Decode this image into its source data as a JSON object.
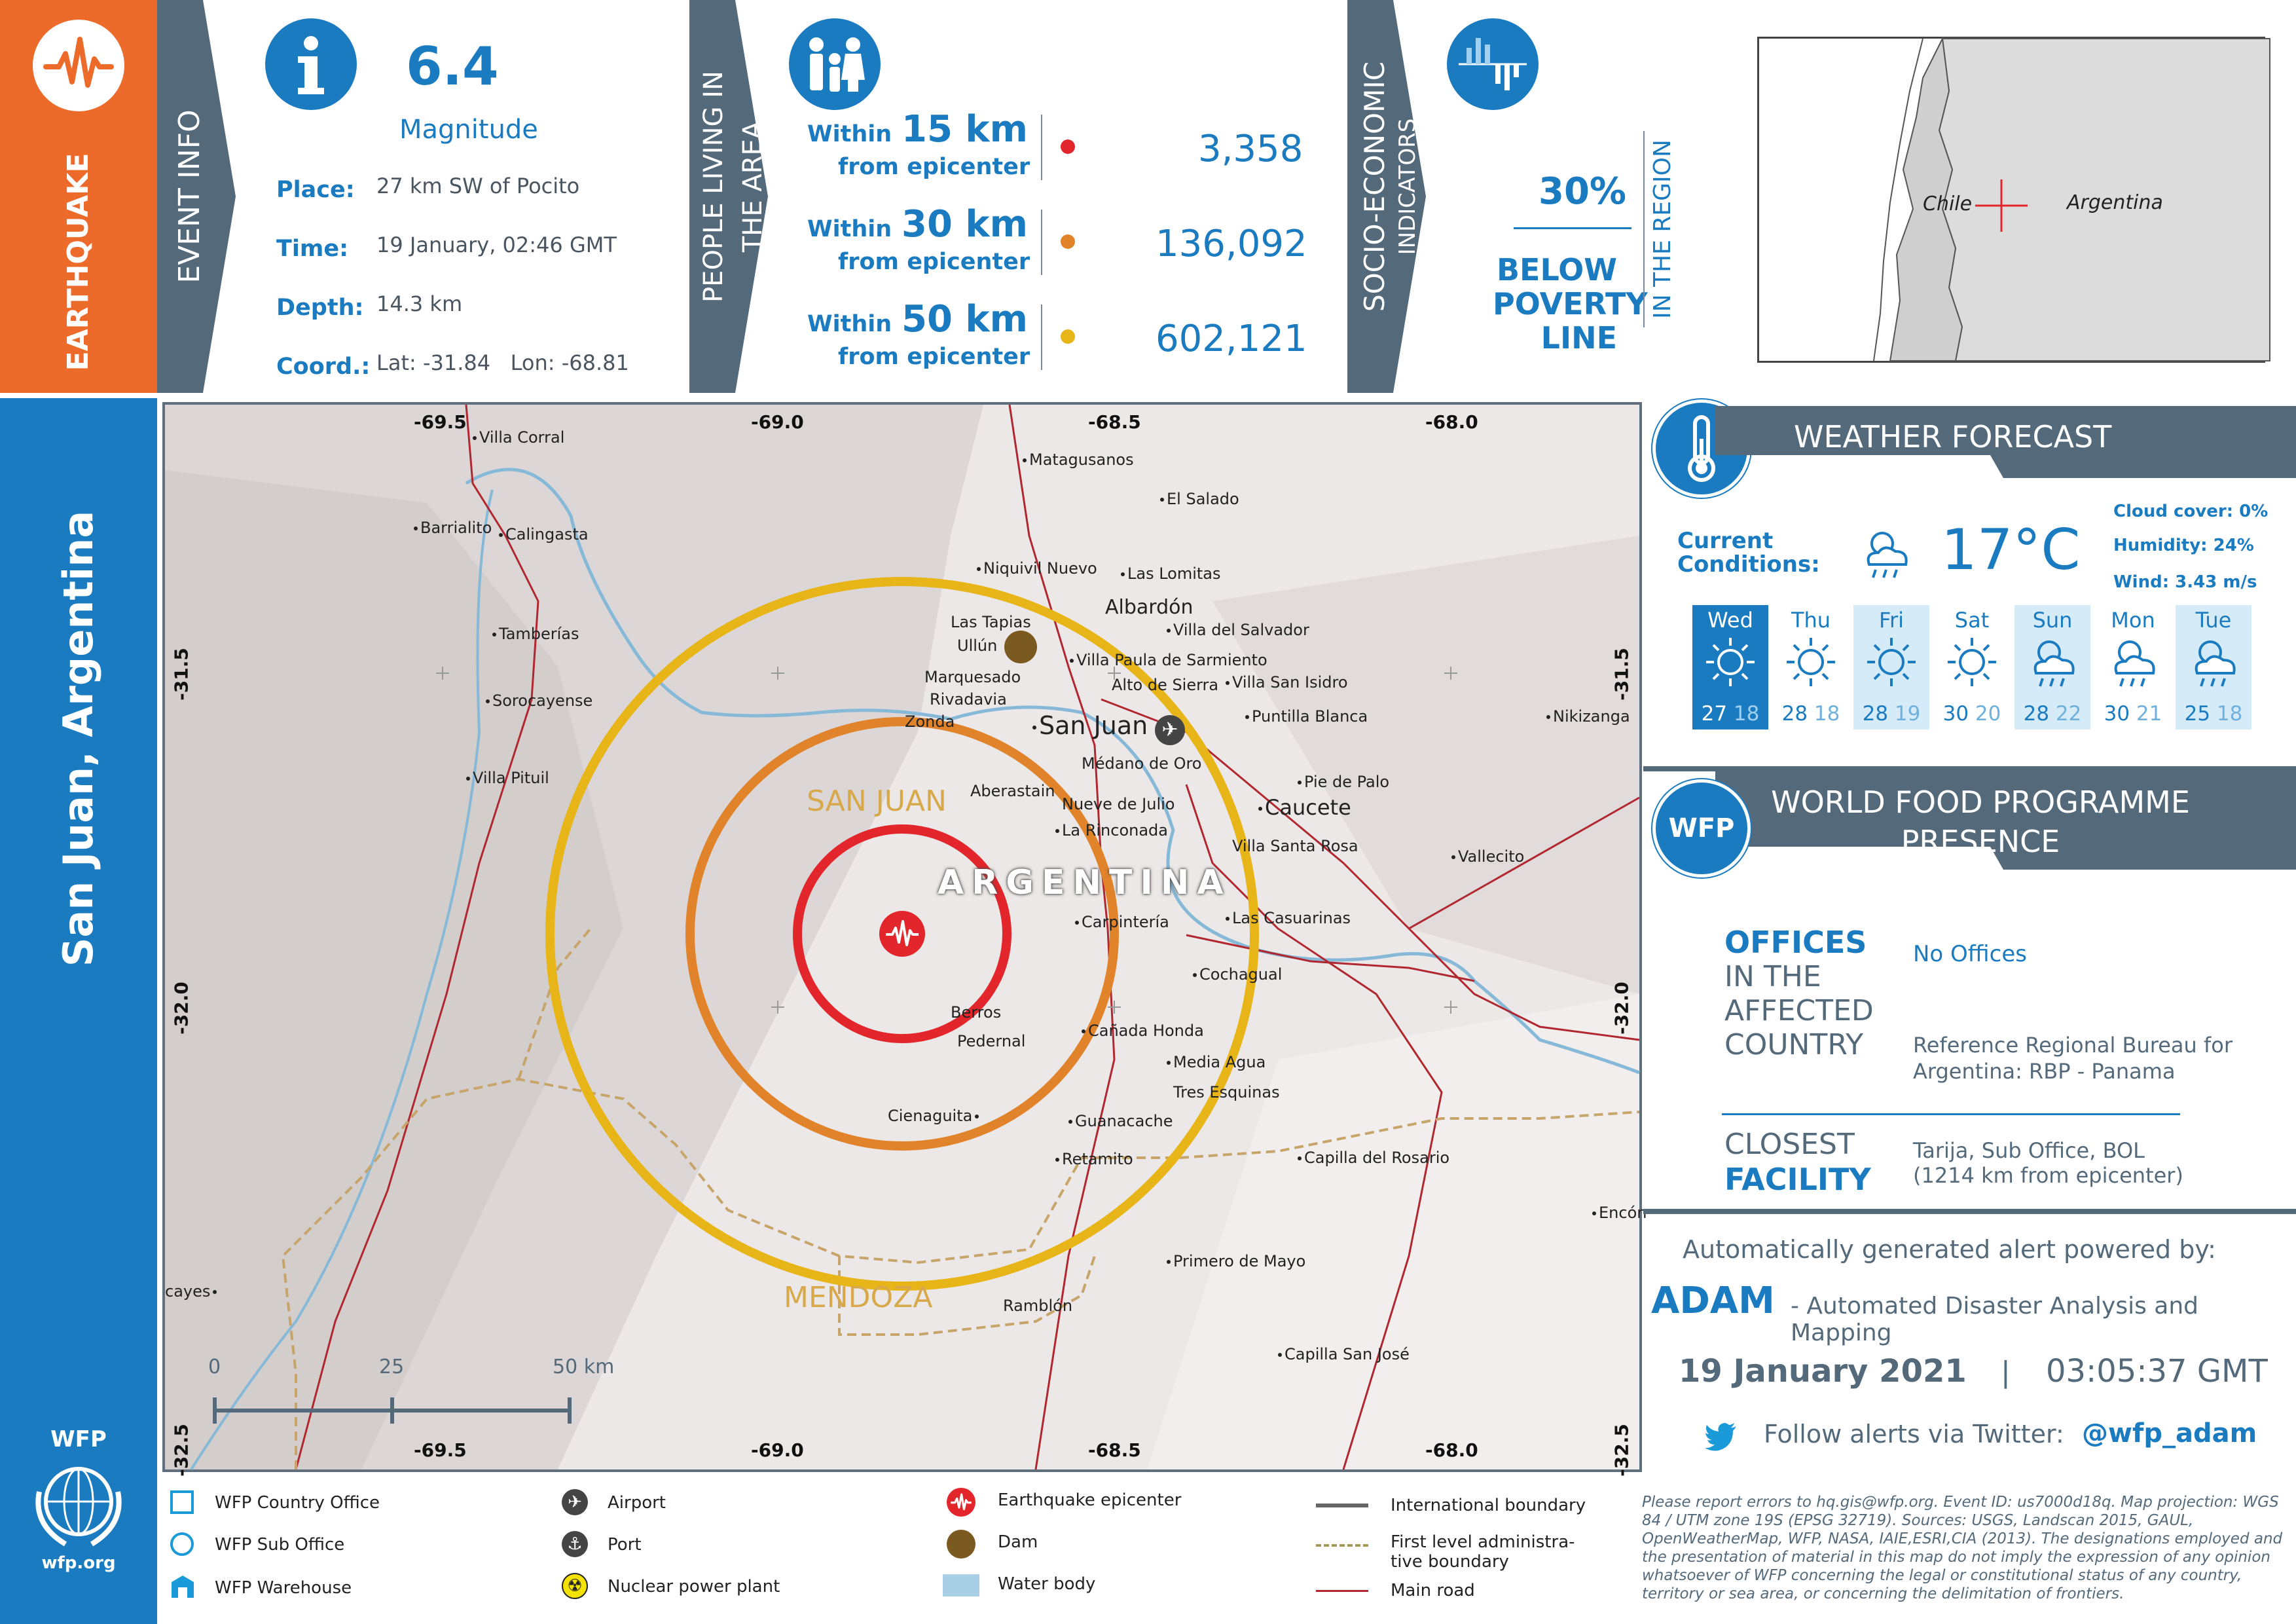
{
  "sidebar": {
    "hazard_label": "EARTHQUAKE",
    "location_title": "San Juan, Argentina",
    "org_logo_text": "WFP",
    "org_url": "wfp.org"
  },
  "event_info": {
    "section_label": "EVENT INFO",
    "magnitude_value": "6.4",
    "magnitude_label": "Magnitude",
    "place_label": "Place:",
    "place_value": "27 km SW of Pocito",
    "time_label": "Time:",
    "time_value": "19 January, 02:46 GMT",
    "depth_label": "Depth:",
    "depth_value": "14.3 km",
    "coord_label": "Coord.:",
    "coord_value": "Lat: -31.84   Lon: -68.81"
  },
  "population": {
    "section_label_line1": "PEOPLE LIVING IN",
    "section_label_line2": "THE AREA",
    "rows": [
      {
        "within": "Within",
        "km": "15 km",
        "from": "from epicenter",
        "count": "3,358",
        "color": "#e3262b"
      },
      {
        "within": "Within",
        "km": "30 km",
        "from": "from epicenter",
        "count": "136,092",
        "color": "#e0832a"
      },
      {
        "within": "Within",
        "km": "50 km",
        "from": "from epicenter",
        "count": "602,121",
        "color": "#e8b518"
      }
    ]
  },
  "socio": {
    "section_label_line1": "SOCIO-ECONOMIC",
    "section_label_line2": "INDICATORS",
    "percent": "30%",
    "line1": "BELOW",
    "line2": "POVERTY",
    "line3": "LINE",
    "region_label": "IN THE REGION"
  },
  "inset_map": {
    "label_chile": "Chile",
    "label_argentina": "Argentina"
  },
  "weather": {
    "title": "WEATHER FORECAST",
    "current_label_line1": "Current",
    "current_label_line2": "Conditions:",
    "current_temp": "17°C",
    "cloud_cover": "Cloud cover: 0%",
    "humidity": "Humidity: 24%",
    "wind": "Wind: 3.43 m/s",
    "days": [
      {
        "name": "Wed",
        "high": "27",
        "low": "18",
        "icon": "sun-icon",
        "style": "selected"
      },
      {
        "name": "Thu",
        "high": "28",
        "low": "18",
        "icon": "sun-icon",
        "style": "plain"
      },
      {
        "name": "Fri",
        "high": "28",
        "low": "19",
        "icon": "sun-icon",
        "style": "light"
      },
      {
        "name": "Sat",
        "high": "30",
        "low": "20",
        "icon": "sun-icon",
        "style": "plain"
      },
      {
        "name": "Sun",
        "high": "28",
        "low": "22",
        "icon": "rain-cloud-icon",
        "style": "light"
      },
      {
        "name": "Mon",
        "high": "30",
        "low": "21",
        "icon": "rain-cloud-icon",
        "style": "plain"
      },
      {
        "name": "Tue",
        "high": "25",
        "low": "18",
        "icon": "rain-cloud-icon",
        "style": "light"
      }
    ]
  },
  "wfp_presence": {
    "badge": "WFP",
    "title_line1": "WORLD FOOD PROGRAMME",
    "title_line2": "PRESENCE",
    "offices_bold": "OFFICES",
    "offices_rest_1": "IN THE",
    "offices_rest_2": "AFFECTED",
    "offices_rest_3": "COUNTRY",
    "offices_value": "No Offices",
    "regional_bureau_line1": "Reference Regional Bureau for",
    "regional_bureau_line2": "Argentina: RBP - Panama",
    "closest_line1": "CLOSEST",
    "closest_line2": "FACILITY",
    "closest_value_line1": "Tarija, Sub Office, BOL",
    "closest_value_line2": "(1214 km from epicenter)"
  },
  "footer": {
    "powered_by": "Automatically generated alert powered by:",
    "adam_name": "ADAM",
    "adam_desc": "- Automated Disaster Analysis and Mapping",
    "date": "19 January 2021",
    "separator": "|",
    "time": "03:05:37 GMT",
    "twitter_text": "Follow alerts via Twitter:",
    "twitter_handle": "@wfp_adam",
    "disclaimer": "Please report errors to hq.gis@wfp.org. Event ID: us7000d18q. Map projection: WGS 84 / UTM zone 19S (EPSG 32719). Sources: USGS, Landscan 2015, GAUL, OpenWeatherMap, WFP, NASA, IAIE,ESRI,CIA (2013). The designations employed and the presentation of material in this map do not imply the expression of any opinion whatsoever of WFP concerning the legal or constitutional status of any country, territory or sea area, or concerning the delimitation of frontiers."
  },
  "legend": {
    "country_office": "WFP Country Office",
    "sub_office": "WFP Sub Office",
    "warehouse": "WFP Warehouse",
    "airport": "Airport",
    "port": "Port",
    "nuclear": "Nuclear power plant",
    "epicenter": "Earthquake epicenter",
    "dam": "Dam",
    "water": "Water body",
    "intl_boundary": "International boundary",
    "admin_boundary_line1": "First level administra-",
    "admin_boundary_line2": "tive boundary",
    "main_road": "Main road"
  },
  "map": {
    "country_label": "ARGENTINA",
    "province_san_juan": "SAN JUAN",
    "province_mendoza": "MENDOZA",
    "coords": {
      "top": [
        "-69.5",
        "-69.0",
        "-68.5",
        "-68.0"
      ],
      "bottom": [
        "-69.5",
        "-69.0",
        "-68.5",
        "-68.0"
      ],
      "left": [
        "-31.5",
        "-32.0",
        "-32.5"
      ],
      "right": [
        "-31.5",
        "-32.0",
        "-32.5"
      ]
    },
    "scale": {
      "s0": "0",
      "s25": "25",
      "s50": "50 km"
    },
    "towns": [
      {
        "name": "Villa Corral"
      },
      {
        "name": "Matagusanos"
      },
      {
        "name": "El Salado"
      },
      {
        "name": "Barrialito"
      },
      {
        "name": "Calingasta"
      },
      {
        "name": "Niquivil Nuevo"
      },
      {
        "name": "Las Lomitas"
      },
      {
        "name": "Albardón"
      },
      {
        "name": "Las Tapias"
      },
      {
        "name": "Villa del Salvador"
      },
      {
        "name": "Tamberías"
      },
      {
        "name": "Ullún"
      },
      {
        "name": "Villa Paula de Sarmiento"
      },
      {
        "name": "Marquesado"
      },
      {
        "name": "Alto de Sierra"
      },
      {
        "name": "Villa San Isidro"
      },
      {
        "name": "Rivadavia"
      },
      {
        "name": "Sorocayense"
      },
      {
        "name": "Puntilla Blanca"
      },
      {
        "name": "San Juan"
      },
      {
        "name": "Zonda"
      },
      {
        "name": "Nikizanga"
      },
      {
        "name": "Médano de Oro"
      },
      {
        "name": "Villa Pituil"
      },
      {
        "name": "Pie de Palo"
      },
      {
        "name": "Aberastain"
      },
      {
        "name": "Nueve de Julio"
      },
      {
        "name": "Caucete"
      },
      {
        "name": "La Rinconada"
      },
      {
        "name": "Villa Santa Rosa"
      },
      {
        "name": "Vallecito"
      },
      {
        "name": "Carpintería"
      },
      {
        "name": "Las Casuarinas"
      },
      {
        "name": "Cochagual"
      },
      {
        "name": "Berros"
      },
      {
        "name": "Cañada Honda"
      },
      {
        "name": "Pedernal"
      },
      {
        "name": "Media Agua"
      },
      {
        "name": "Tres Esquinas"
      },
      {
        "name": "Cienaguita"
      },
      {
        "name": "Guanacache"
      },
      {
        "name": "Retamito"
      },
      {
        "name": "Capilla del Rosario"
      },
      {
        "name": "Encón"
      },
      {
        "name": "cayes"
      },
      {
        "name": "Primero de Mayo"
      },
      {
        "name": "Ramblón"
      },
      {
        "name": "Capilla San José"
      }
    ]
  }
}
